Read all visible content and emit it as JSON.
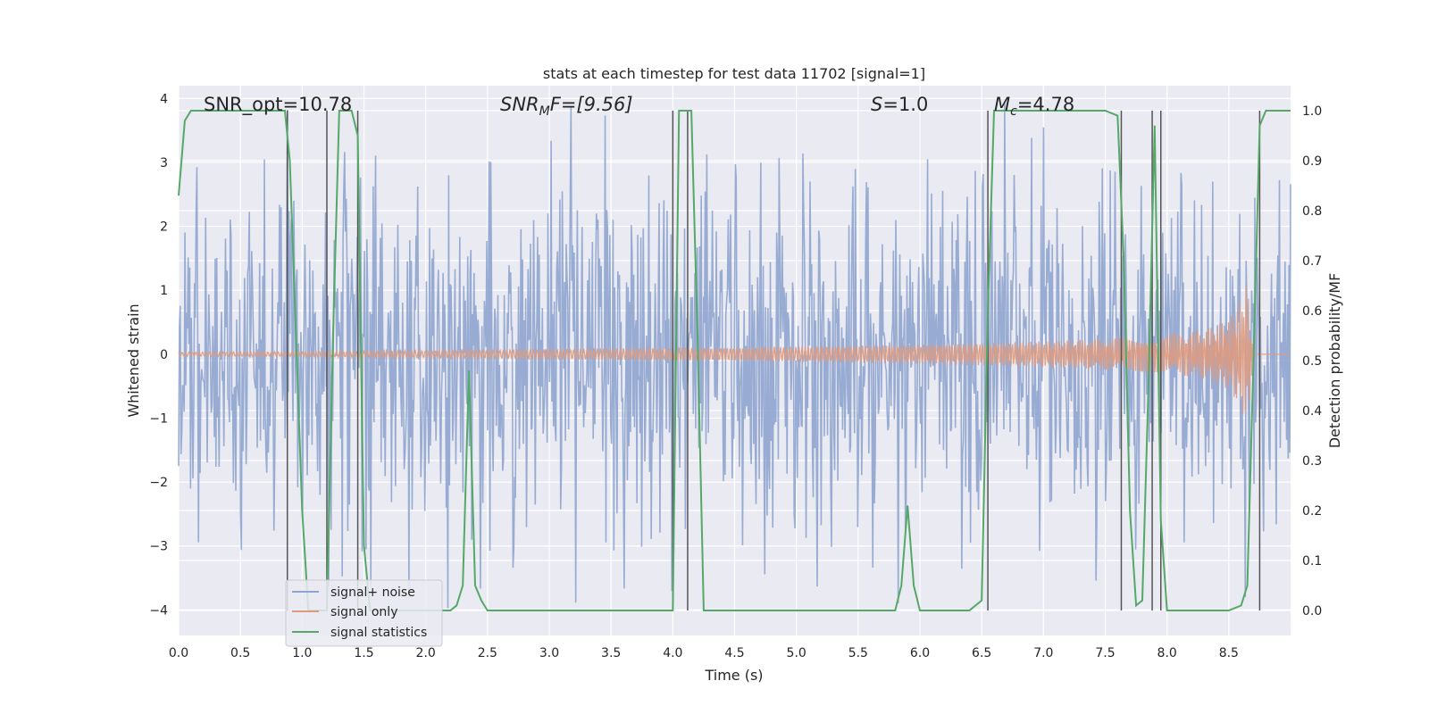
{
  "chart_data": {
    "type": "line",
    "title": "stats at each timestep for test data 11702 [signal=1]",
    "xlabel": "Time (s)",
    "ylabel_left": "Whitened strain",
    "ylabel_right": "Detection probability/MF",
    "xlim": [
      0.0,
      9.0
    ],
    "ylim_left": [
      -4.4,
      4.2
    ],
    "ylim_right": [
      -0.05,
      1.05
    ],
    "xticks": [
      "0.0",
      "0.5",
      "1.0",
      "1.5",
      "2.0",
      "2.5",
      "3.0",
      "3.5",
      "4.0",
      "4.5",
      "5.0",
      "5.5",
      "6.0",
      "6.5",
      "7.0",
      "7.5",
      "8.0",
      "8.5"
    ],
    "yticks_left": [
      "−4",
      "−3",
      "−2",
      "−1",
      "0",
      "1",
      "2",
      "3",
      "4"
    ],
    "yticks_right": [
      "0.0",
      "0.1",
      "0.2",
      "0.3",
      "0.4",
      "0.5",
      "0.6",
      "0.7",
      "0.8",
      "0.9",
      "1.0"
    ],
    "grid": true,
    "legend_position": "lower-left",
    "annotations": {
      "snr_opt": "SNR_opt=10.78",
      "snr_mf_prefix": "SNR",
      "snr_mf_sub": "M",
      "snr_mf_suffix": "F=[9.56]",
      "s_prefix": "S",
      "s_value": "=1.0",
      "mc_prefix": "M",
      "mc_sub": "c",
      "mc_value": "=4.78"
    },
    "series": [
      {
        "name": "signal+ noise",
        "color": "#8fa5cf",
        "axis": "left",
        "envelope": {
          "x": [
            0.0,
            0.5,
            1.0,
            1.5,
            2.0,
            2.5,
            3.0,
            3.5,
            4.0,
            4.5,
            5.0,
            5.5,
            6.0,
            6.5,
            7.0,
            7.5,
            8.0,
            8.5,
            9.0
          ],
          "upper": [
            2.9,
            3.1,
            3.0,
            2.9,
            3.0,
            2.8,
            3.0,
            3.2,
            3.1,
            3.0,
            2.9,
            3.1,
            3.0,
            3.2,
            3.0,
            3.1,
            3.3,
            3.1,
            3.0
          ],
          "lower": [
            -2.5,
            -2.8,
            -2.7,
            -3.0,
            -3.1,
            -3.3,
            -3.0,
            -3.2,
            -2.9,
            -3.0,
            -2.8,
            -2.9,
            -3.2,
            -3.1,
            -3.0,
            -3.0,
            -3.4,
            -3.0,
            -3.0
          ]
        }
      },
      {
        "name": "signal only",
        "color": "#dd9a7f",
        "axis": "left",
        "envelope": {
          "x": [
            0.0,
            1.0,
            2.0,
            3.0,
            4.0,
            5.0,
            6.0,
            7.0,
            7.5,
            8.0,
            8.3,
            8.5,
            8.6,
            8.65,
            8.7,
            9.0
          ],
          "amplitude": [
            0.03,
            0.04,
            0.06,
            0.08,
            0.1,
            0.12,
            0.15,
            0.2,
            0.24,
            0.3,
            0.38,
            0.55,
            0.85,
            1.15,
            0.0,
            0.0
          ]
        }
      },
      {
        "name": "signal statistics",
        "color": "#55a868",
        "axis": "right",
        "x": [
          0.0,
          0.05,
          0.1,
          0.15,
          0.2,
          0.3,
          0.4,
          0.5,
          0.6,
          0.7,
          0.8,
          0.86,
          0.9,
          0.95,
          1.0,
          1.05,
          1.1,
          1.15,
          1.2,
          1.25,
          1.3,
          1.35,
          1.4,
          1.45,
          1.5,
          1.55,
          1.6,
          1.7,
          1.8,
          1.9,
          2.0,
          2.1,
          2.2,
          2.25,
          2.3,
          2.35,
          2.4,
          2.45,
          2.5,
          2.6,
          3.0,
          3.2,
          3.5,
          3.9,
          4.0,
          4.05,
          4.1,
          4.15,
          4.2,
          4.25,
          4.3,
          4.5,
          5.0,
          5.5,
          5.8,
          5.85,
          5.9,
          5.95,
          6.0,
          6.1,
          6.4,
          6.5,
          6.55,
          6.6,
          6.65,
          6.7,
          7.0,
          7.5,
          7.6,
          7.65,
          7.7,
          7.75,
          7.8,
          7.85,
          7.9,
          7.95,
          8.0,
          8.05,
          8.1,
          8.5,
          8.6,
          8.65,
          8.7,
          8.75,
          8.8,
          8.85,
          8.9,
          9.0
        ],
        "y": [
          0.83,
          0.98,
          1.0,
          1.0,
          1.0,
          1.0,
          1.0,
          1.0,
          1.0,
          1.0,
          1.0,
          1.0,
          0.9,
          0.55,
          0.2,
          0.0,
          0.0,
          0.0,
          0.0,
          0.55,
          1.0,
          1.0,
          1.0,
          0.95,
          0.13,
          0.0,
          0.0,
          0.0,
          0.0,
          0.0,
          0.0,
          0.0,
          0.0,
          0.01,
          0.05,
          0.48,
          0.05,
          0.02,
          0.0,
          0.0,
          0.0,
          0.0,
          0.0,
          0.0,
          0.0,
          1.0,
          1.0,
          1.0,
          0.55,
          0.0,
          0.0,
          0.0,
          0.0,
          0.0,
          0.0,
          0.05,
          0.21,
          0.05,
          0.0,
          0.0,
          0.0,
          0.02,
          0.6,
          1.0,
          1.0,
          1.0,
          1.0,
          1.0,
          0.99,
          0.7,
          0.2,
          0.01,
          0.02,
          0.45,
          0.97,
          0.18,
          0.0,
          0.0,
          0.0,
          0.0,
          0.01,
          0.05,
          0.5,
          0.97,
          1.0,
          1.0,
          1.0,
          1.0
        ]
      }
    ],
    "vertical_markers_x": [
      0.88,
      1.2,
      1.45,
      4.0,
      4.12,
      6.55,
      7.63,
      7.88,
      7.95,
      8.75
    ],
    "marker_color": "#555555"
  }
}
